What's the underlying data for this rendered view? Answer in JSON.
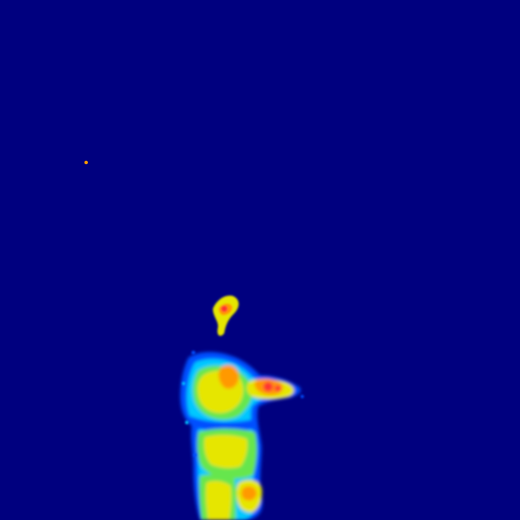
{
  "image": {
    "colormap": "jet",
    "palette": {
      "background": "#00007f",
      "cold_edge": "#0000c8",
      "cool": "#0050ff",
      "mid_cyan": "#00c8ff",
      "mid_green": "#66e64d",
      "warm_yellow": "#e6e600",
      "hot_orange": "#ff9900",
      "hottest_red": "#ff3333"
    }
  }
}
